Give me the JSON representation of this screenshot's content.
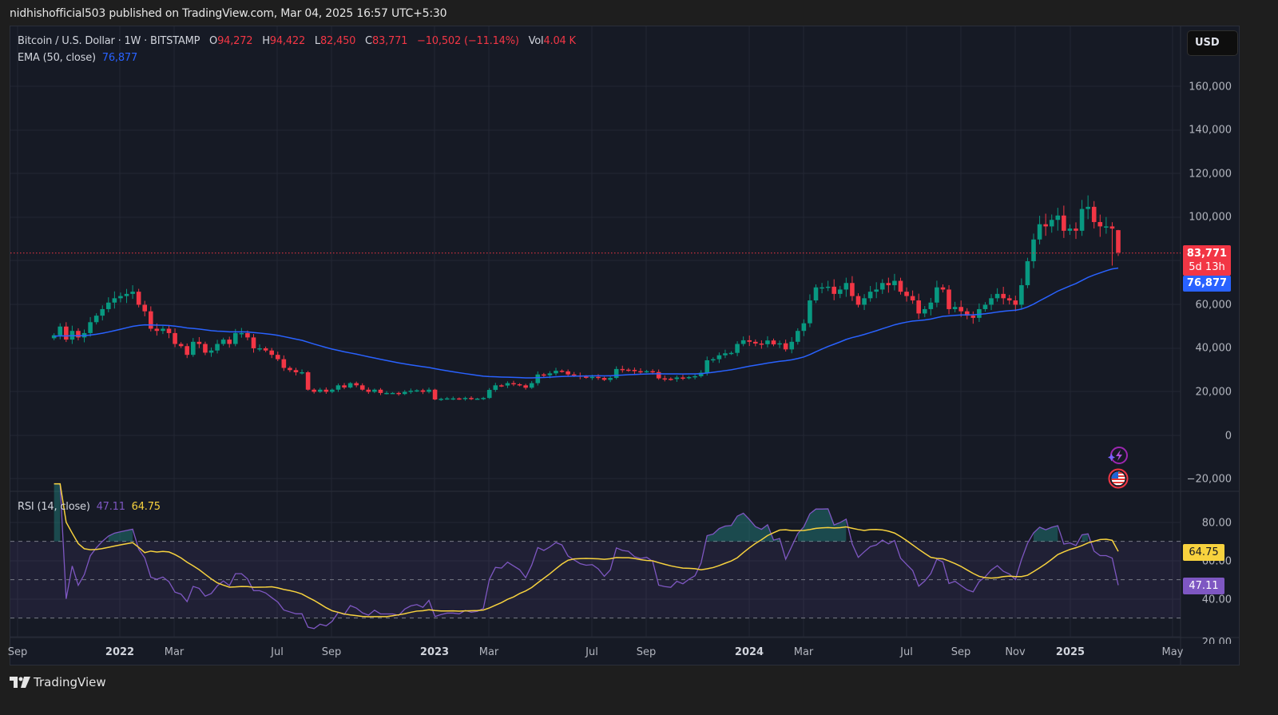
{
  "header": {
    "published_text": "nidhishofficial503 published on TradingView.com, Mar 04, 2025 16:57 UTC+5:30"
  },
  "legend": {
    "symbol": "Bitcoin / U.S. Dollar · 1W · BITSTAMP",
    "o_label": "O",
    "o_value": "94,272",
    "h_label": "H",
    "h_value": "94,422",
    "l_label": "L",
    "l_value": "82,450",
    "c_label": "C",
    "c_value": "83,771",
    "change": "−10,502 (−11.14%)",
    "vol_label": "Vol",
    "vol_value": "4.04 K",
    "ema_label": "EMA (50, close)",
    "ema_value": "76,877",
    "rsi_label": "RSI (14, close)",
    "rsi_value": "47.11",
    "rsi_ma_value": "64.75"
  },
  "currency_button": "USD",
  "price_axis": [
    "160,000",
    "140,000",
    "120,000",
    "100,000",
    "60,000",
    "40,000",
    "20,000",
    "0",
    "−20,000"
  ],
  "price_tags": {
    "last_price": "83,771",
    "countdown": "5d 13h",
    "ema": "76,877"
  },
  "rsi_axis": [
    "80.00",
    "60.00",
    "40.00",
    "20.00"
  ],
  "rsi_tags": {
    "ma": "64.75",
    "rsi": "47.11"
  },
  "time_axis": [
    {
      "label": "Sep",
      "bold": false
    },
    {
      "label": "2022",
      "bold": true
    },
    {
      "label": "Mar",
      "bold": false
    },
    {
      "label": "Jul",
      "bold": false
    },
    {
      "label": "Sep",
      "bold": false
    },
    {
      "label": "2023",
      "bold": true
    },
    {
      "label": "Mar",
      "bold": false
    },
    {
      "label": "Jul",
      "bold": false
    },
    {
      "label": "Sep",
      "bold": false
    },
    {
      "label": "2024",
      "bold": true
    },
    {
      "label": "Mar",
      "bold": false
    },
    {
      "label": "Jul",
      "bold": false
    },
    {
      "label": "Sep",
      "bold": false
    },
    {
      "label": "Nov",
      "bold": false
    },
    {
      "label": "2025",
      "bold": true
    },
    {
      "label": "May",
      "bold": false
    }
  ],
  "footer": {
    "brand": "TradingView"
  },
  "colors": {
    "up": "#089981",
    "down": "#f23645",
    "ema": "#2962ff",
    "rsi": "#7e57c2",
    "rsi_ma": "#f7d23e",
    "bg": "#161a25"
  },
  "chart_data": [
    {
      "type": "candlestick",
      "title": "Bitcoin / U.S. Dollar · 1W · BITSTAMP",
      "interval": "1W",
      "xlabel": "",
      "ylabel": "USD",
      "ylim": [
        -20000,
        170000
      ],
      "x_ticks": [
        "Sep",
        "2022",
        "Mar",
        "Jul",
        "Sep",
        "2023",
        "Mar",
        "Jul",
        "Sep",
        "2024",
        "Mar",
        "Jul",
        "Sep",
        "Nov",
        "2025",
        "May"
      ],
      "y_ticks": [
        -20000,
        0,
        20000,
        40000,
        60000,
        100000,
        120000,
        140000,
        160000
      ],
      "last_candle": {
        "open": 94272,
        "high": 94422,
        "low": 82450,
        "close": 83771,
        "change": -10502,
        "change_pct": -11.14,
        "volume": "4.04K"
      },
      "approx_closes_weekly": [
        46000,
        50000,
        44000,
        48000,
        45000,
        47000,
        52000,
        55000,
        58000,
        61000,
        63000,
        64000,
        65000,
        66000,
        60000,
        57000,
        49000,
        48000,
        49000,
        47000,
        42000,
        41000,
        37000,
        43000,
        42000,
        38000,
        39000,
        42000,
        44000,
        42000,
        47000,
        47000,
        45000,
        40000,
        40000,
        39000,
        37000,
        35000,
        31000,
        30000,
        29000,
        29000,
        21000,
        20000,
        21000,
        20000,
        21000,
        23000,
        22000,
        24000,
        23000,
        21000,
        20000,
        21000,
        19500,
        19500,
        19500,
        19000,
        20000,
        20500,
        20700,
        20000,
        21000,
        16500,
        16800,
        17000,
        17000,
        16800,
        17200,
        16800,
        16900,
        17200,
        20900,
        23000,
        22900,
        24000,
        23500,
        23000,
        21900,
        24000,
        28000,
        27600,
        28500,
        29700,
        29400,
        28000,
        27500,
        27000,
        26800,
        26900,
        26400,
        25500,
        26400,
        30500,
        30200,
        30100,
        29500,
        29300,
        29500,
        29100,
        26200,
        26000,
        25900,
        26600,
        26300,
        26800,
        27200,
        28800,
        34500,
        35000,
        36800,
        37700,
        37900,
        42000,
        43700,
        43000,
        42200,
        41900,
        43600,
        41800,
        42300,
        39500,
        43000,
        48000,
        51500,
        62000,
        68000,
        68000,
        68300,
        65000,
        67000,
        70000,
        64000,
        60000,
        63000,
        66000,
        67000,
        70000,
        69000,
        71000,
        66000,
        64000,
        62000,
        56000,
        58000,
        61000,
        68000,
        67000,
        58000,
        59000,
        57000,
        55000,
        54000,
        58000,
        60000,
        63000,
        65000,
        63000,
        62000,
        60000,
        69000,
        80000,
        90000,
        97000,
        96000,
        99000,
        101000,
        94000,
        95000,
        94000,
        104000,
        105000,
        98000,
        96000,
        96000,
        95000,
        84000
      ],
      "ema50_final": 76877
    },
    {
      "type": "line",
      "title": "RSI (14, close)",
      "ylim": [
        20,
        90
      ],
      "y_ticks": [
        20,
        40,
        60,
        80
      ],
      "bands": {
        "upper": 70,
        "middle": 50,
        "lower": 30
      },
      "series": [
        {
          "name": "RSI",
          "color": "#7e57c2",
          "last": 47.11
        },
        {
          "name": "RSI-based MA",
          "color": "#f7d23e",
          "last": 64.75
        }
      ]
    }
  ]
}
